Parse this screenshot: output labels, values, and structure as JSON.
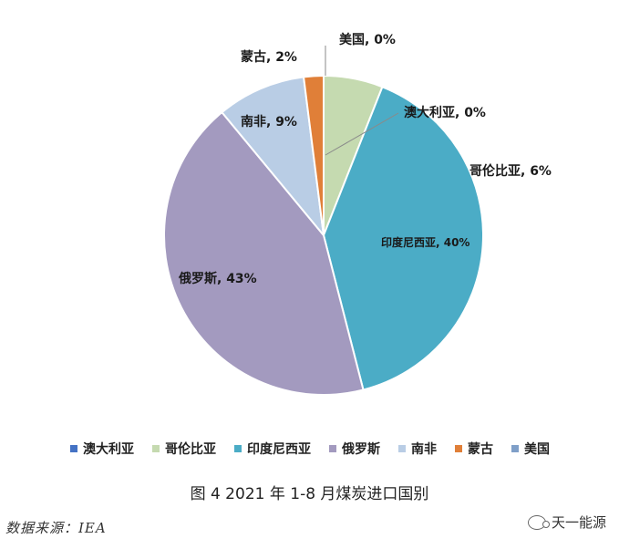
{
  "chart_data": {
    "type": "pie",
    "title": "",
    "slices": [
      {
        "name": "美国",
        "value": 0,
        "label": "美国, 0%",
        "color": "#7F9FC8"
      },
      {
        "name": "哥伦比亚",
        "value": 6,
        "label": "哥伦比亚, 6%",
        "color": "#C5DAB0"
      },
      {
        "name": "澳大利亚",
        "value": 0,
        "label": "澳大利亚, 0%",
        "color": "#4472C4"
      },
      {
        "name": "印度尼西亚",
        "value": 40,
        "label": "印度尼西亚, 40%",
        "color": "#4BACC6"
      },
      {
        "name": "俄罗斯",
        "value": 43,
        "label": "俄罗斯, 43%",
        "color": "#A39ABF"
      },
      {
        "name": "南非",
        "value": 9,
        "label": "南非, 9%",
        "color": "#B9CDE5"
      },
      {
        "name": "蒙古",
        "value": 2,
        "label": "蒙古, 2%",
        "color": "#E07F38"
      }
    ],
    "legend_position": "bottom",
    "legend": [
      {
        "name": "澳大利亚",
        "color": "#4472C4"
      },
      {
        "name": "哥伦比亚",
        "color": "#C5DAB0"
      },
      {
        "name": "印度尼西亚",
        "color": "#4BACC6"
      },
      {
        "name": "俄罗斯",
        "color": "#A39ABF"
      },
      {
        "name": "南非",
        "color": "#B9CDE5"
      },
      {
        "name": "蒙古",
        "color": "#E07F38"
      },
      {
        "name": "美国",
        "color": "#7F9FC8"
      }
    ]
  },
  "caption": "图 4 2021 年 1-8 月煤炭进口国别",
  "source": "数据来源：IEA",
  "watermark": "天一能源"
}
